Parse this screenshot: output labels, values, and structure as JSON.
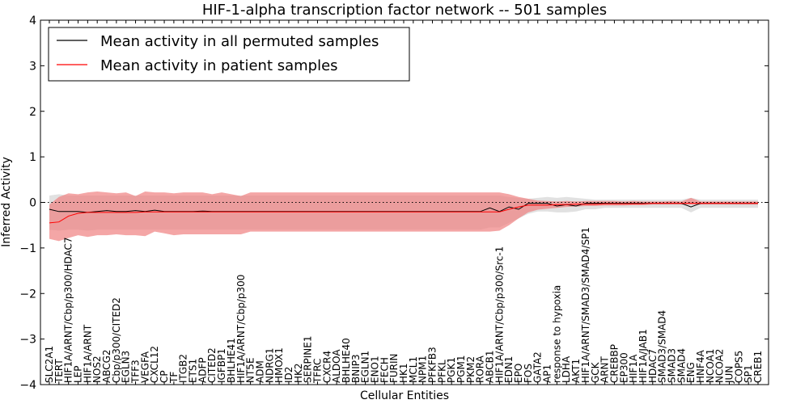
{
  "chart_data": {
    "type": "line",
    "title": "HIF-1-alpha transcription factor network -- 501 samples",
    "xlabel": "Cellular Entities",
    "ylabel": "Inferred Activity",
    "ylim": [
      -4,
      4
    ],
    "yticks": [
      "−4",
      "−3",
      "−2",
      "−1",
      "0",
      "1",
      "2",
      "3",
      "4"
    ],
    "grid": false,
    "legend_position": "top-left",
    "reference_line": 0,
    "colors": {
      "permuted": "#000000",
      "patient": "#ff0000",
      "patient_band": "#f08080",
      "permuted_band": "#c8c8c8"
    },
    "categories": [
      "SLC2A1",
      "TERT",
      "HIF1A/ARNT/Cbp/p300/HDAC7",
      "LEP",
      "HIF1A/ARNT",
      "NOS2",
      "ABCG2",
      "Cbp/p300/CITED2",
      "EGLN3",
      "TFF3",
      "VEGFA",
      "CXCL12",
      "CP",
      "TF",
      "ITGB2",
      "ETS1",
      "ADFP",
      "CITED2",
      "IGFBP1",
      "BHLHE41",
      "HIF1A/ARNT/Cbp/p300",
      "NT5E",
      "ADM",
      "NDRG1",
      "HMOX1",
      "ID2",
      "HK2",
      "SERPINE1",
      "TFRC",
      "CXCR4",
      "ALDOA",
      "BHLHE40",
      "BNIP3",
      "EGLN1",
      "ENO1",
      "FECH",
      "FURIN",
      "HK1",
      "MCL1",
      "NPM1",
      "PFKFB3",
      "PFKL",
      "PGK1",
      "PGM1",
      "PKM2",
      "RORA",
      "ABCB1",
      "HIF1A/ARNT/Cbp/p300/Src-1",
      "EDN1",
      "EPO",
      "FOS",
      "GATA2",
      "AP1",
      "response to hypoxia",
      "LDHA",
      "AKT1",
      "HIF1A/ARNT/SMAD3/SMAD4/SP1",
      "GCK",
      "ARNT",
      "CREBBP",
      "EP300",
      "HIF1A",
      "HIF1A/JAB1",
      "HDAC7",
      "SMAD3/SMAD4",
      "SMAD3",
      "SMAD4",
      "ENG",
      "HNF4A",
      "NCOA1",
      "NCOA2",
      "JUN",
      "COPS5",
      "SP1",
      "CREB1"
    ],
    "series": [
      {
        "name": "Mean activity in all permuted samples",
        "values": [
          -0.15,
          -0.2,
          -0.2,
          -0.2,
          -0.22,
          -0.2,
          -0.18,
          -0.2,
          -0.2,
          -0.18,
          -0.2,
          -0.17,
          -0.2,
          -0.2,
          -0.2,
          -0.2,
          -0.19,
          -0.2,
          -0.2,
          -0.2,
          -0.2,
          -0.2,
          -0.2,
          -0.2,
          -0.2,
          -0.2,
          -0.2,
          -0.2,
          -0.2,
          -0.2,
          -0.2,
          -0.2,
          -0.2,
          -0.2,
          -0.2,
          -0.2,
          -0.2,
          -0.2,
          -0.2,
          -0.2,
          -0.2,
          -0.2,
          -0.2,
          -0.2,
          -0.2,
          -0.2,
          -0.12,
          -0.2,
          -0.1,
          -0.15,
          -0.02,
          -0.02,
          -0.02,
          -0.08,
          -0.05,
          -0.08,
          -0.02,
          -0.02,
          -0.02,
          -0.02,
          -0.02,
          -0.02,
          -0.02,
          -0.02,
          -0.02,
          -0.02,
          -0.02,
          -0.1,
          -0.02,
          -0.02,
          -0.02,
          -0.02,
          -0.02,
          -0.02,
          -0.02
        ]
      },
      {
        "name": "Mean activity in patient samples",
        "values": [
          -0.45,
          -0.43,
          -0.3,
          -0.24,
          -0.22,
          -0.22,
          -0.22,
          -0.22,
          -0.22,
          -0.22,
          -0.21,
          -0.21,
          -0.21,
          -0.21,
          -0.21,
          -0.21,
          -0.21,
          -0.21,
          -0.21,
          -0.21,
          -0.21,
          -0.21,
          -0.21,
          -0.21,
          -0.21,
          -0.21,
          -0.21,
          -0.21,
          -0.21,
          -0.21,
          -0.21,
          -0.21,
          -0.21,
          -0.21,
          -0.21,
          -0.21,
          -0.21,
          -0.21,
          -0.21,
          -0.21,
          -0.21,
          -0.21,
          -0.21,
          -0.21,
          -0.21,
          -0.21,
          -0.21,
          -0.21,
          -0.15,
          -0.1,
          -0.06,
          -0.06,
          -0.06,
          -0.05,
          -0.05,
          -0.04,
          -0.04,
          -0.04,
          -0.03,
          -0.03,
          -0.03,
          -0.03,
          -0.03,
          -0.02,
          -0.02,
          -0.02,
          -0.02,
          -0.02,
          -0.02,
          -0.02,
          -0.02,
          -0.02,
          -0.02,
          -0.02,
          -0.02
        ]
      }
    ],
    "bands": {
      "patient_lower": [
        -0.8,
        -0.85,
        -0.78,
        -0.72,
        -0.76,
        -0.72,
        -0.72,
        -0.7,
        -0.72,
        -0.72,
        -0.74,
        -0.64,
        -0.68,
        -0.72,
        -0.7,
        -0.7,
        -0.7,
        -0.7,
        -0.7,
        -0.7,
        -0.7,
        -0.64,
        -0.64,
        -0.64,
        -0.64,
        -0.64,
        -0.64,
        -0.64,
        -0.64,
        -0.64,
        -0.64,
        -0.64,
        -0.64,
        -0.64,
        -0.64,
        -0.64,
        -0.64,
        -0.64,
        -0.64,
        -0.64,
        -0.64,
        -0.64,
        -0.64,
        -0.64,
        -0.64,
        -0.64,
        -0.64,
        -0.62,
        -0.5,
        -0.35,
        -0.22,
        -0.16,
        -0.14,
        -0.12,
        -0.1,
        -0.09,
        -0.08,
        -0.08,
        -0.07,
        -0.07,
        -0.07,
        -0.06,
        -0.06,
        -0.05,
        -0.05,
        -0.05,
        -0.05,
        -0.05,
        -0.05,
        -0.05,
        -0.05,
        -0.05,
        -0.05,
        -0.05,
        -0.05
      ],
      "patient_upper": [
        -0.05,
        0.12,
        0.2,
        0.18,
        0.22,
        0.24,
        0.22,
        0.2,
        0.22,
        0.14,
        0.24,
        0.22,
        0.22,
        0.2,
        0.22,
        0.22,
        0.22,
        0.18,
        0.22,
        0.18,
        0.14,
        0.22,
        0.22,
        0.22,
        0.22,
        0.22,
        0.22,
        0.22,
        0.22,
        0.22,
        0.22,
        0.22,
        0.22,
        0.22,
        0.22,
        0.22,
        0.22,
        0.22,
        0.22,
        0.22,
        0.22,
        0.22,
        0.22,
        0.22,
        0.22,
        0.22,
        0.22,
        0.22,
        0.18,
        0.12,
        0.08,
        0.04,
        0.03,
        0.02,
        0.03,
        0.02,
        0.03,
        0.03,
        0.03,
        0.03,
        0.02,
        0.03,
        0.02,
        0.02,
        0.02,
        0.03,
        0.02,
        0.1,
        0.02,
        0.02,
        0.02,
        0.02,
        0.02,
        0.02,
        0.02
      ],
      "permuted_lower": [
        -0.6,
        -0.62,
        -0.6,
        -0.6,
        -0.62,
        -0.6,
        -0.6,
        -0.6,
        -0.6,
        -0.6,
        -0.6,
        -0.6,
        -0.6,
        -0.6,
        -0.6,
        -0.6,
        -0.6,
        -0.6,
        -0.6,
        -0.6,
        -0.6,
        -0.6,
        -0.6,
        -0.6,
        -0.6,
        -0.6,
        -0.6,
        -0.6,
        -0.6,
        -0.6,
        -0.6,
        -0.6,
        -0.6,
        -0.6,
        -0.6,
        -0.6,
        -0.6,
        -0.6,
        -0.6,
        -0.6,
        -0.6,
        -0.6,
        -0.6,
        -0.6,
        -0.6,
        -0.6,
        -0.55,
        -0.55,
        -0.45,
        -0.35,
        -0.25,
        -0.2,
        -0.2,
        -0.22,
        -0.22,
        -0.2,
        -0.15,
        -0.15,
        -0.12,
        -0.12,
        -0.12,
        -0.12,
        -0.12,
        -0.12,
        -0.12,
        -0.12,
        -0.12,
        -0.22,
        -0.12,
        -0.12,
        -0.12,
        -0.12,
        -0.12,
        -0.12,
        -0.12
      ],
      "permuted_upper": [
        0.15,
        0.18,
        0.15,
        0.15,
        0.15,
        0.15,
        0.15,
        0.15,
        0.15,
        0.15,
        0.15,
        0.15,
        0.15,
        0.15,
        0.15,
        0.15,
        0.15,
        0.15,
        0.15,
        0.15,
        0.15,
        0.15,
        0.15,
        0.15,
        0.15,
        0.15,
        0.15,
        0.15,
        0.15,
        0.15,
        0.15,
        0.15,
        0.15,
        0.15,
        0.15,
        0.15,
        0.15,
        0.15,
        0.15,
        0.15,
        0.15,
        0.15,
        0.15,
        0.15,
        0.15,
        0.15,
        0.15,
        0.15,
        0.12,
        0.1,
        0.08,
        0.1,
        0.12,
        0.1,
        0.12,
        0.1,
        0.08,
        0.06,
        0.06,
        0.06,
        0.06,
        0.06,
        0.06,
        0.06,
        0.06,
        0.06,
        0.06,
        0.1,
        0.06,
        0.06,
        0.06,
        0.06,
        0.06,
        0.06,
        0.06
      ]
    }
  }
}
